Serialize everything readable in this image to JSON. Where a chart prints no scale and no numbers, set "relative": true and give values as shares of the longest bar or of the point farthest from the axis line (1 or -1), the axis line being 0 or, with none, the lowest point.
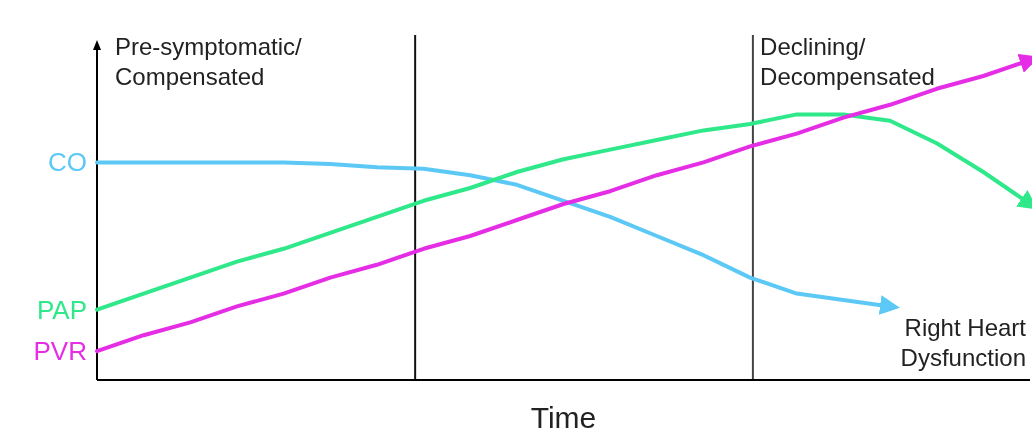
{
  "chart_data": {
    "type": "line",
    "relative": true,
    "xlabel": "Time",
    "tick_labels": false,
    "marker": "none",
    "line_style": "solid",
    "categories": [
      null,
      null,
      null,
      null,
      null,
      null,
      null,
      null,
      null,
      null,
      null,
      null,
      null,
      null,
      null,
      null,
      null,
      null,
      null,
      null,
      null
    ],
    "series": [
      {
        "name": "CO",
        "color": "#5bc8f5",
        "values": [
          0.68,
          0.68,
          0.68,
          0.68,
          0.68,
          0.675,
          0.665,
          0.66,
          0.64,
          0.61,
          0.56,
          0.51,
          0.45,
          0.39,
          0.32,
          0.27,
          0.25,
          0.23,
          null,
          null,
          null
        ]
      },
      {
        "name": "PAP",
        "color": "#2ee88a",
        "values": [
          0.22,
          0.27,
          0.32,
          0.37,
          0.41,
          0.46,
          0.51,
          0.56,
          0.6,
          0.65,
          0.69,
          0.72,
          0.75,
          0.78,
          0.8,
          0.83,
          0.83,
          0.81,
          0.74,
          0.65,
          0.55
        ]
      },
      {
        "name": "PVR",
        "color": "#e62de6",
        "values": [
          0.09,
          0.14,
          0.18,
          0.23,
          0.27,
          0.32,
          0.36,
          0.41,
          0.45,
          0.5,
          0.55,
          0.59,
          0.64,
          0.68,
          0.73,
          0.77,
          0.82,
          0.86,
          0.91,
          0.95,
          1.0
        ]
      }
    ],
    "annotations": [
      "Pre-symptomatic/\nCompensated",
      "Declining/\nDecompensated",
      "Right Heart\nDysfunction"
    ]
  }
}
